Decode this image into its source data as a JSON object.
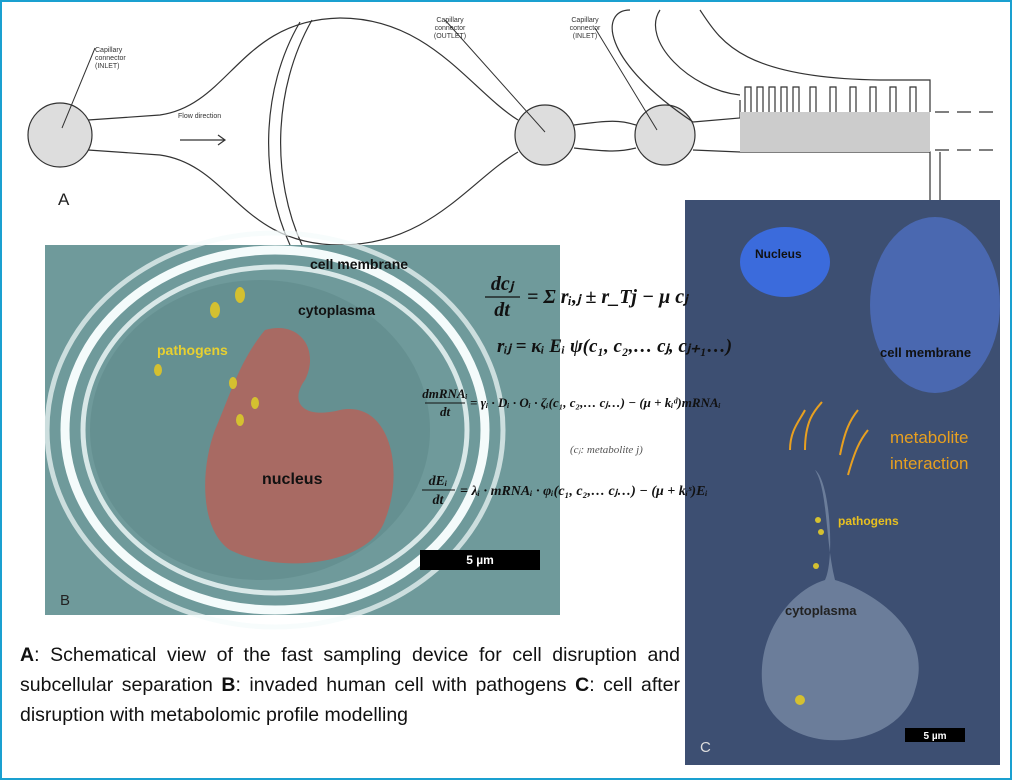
{
  "panel_a": {
    "label": "A",
    "inlet_left": [
      "Capillary",
      "connector",
      "(INLET)"
    ],
    "flow": "Flow direction",
    "outlet": [
      "Capillary",
      "connector",
      "(OUTLET)"
    ],
    "inlet_right": [
      "Capillary",
      "connector",
      "(INLET)"
    ]
  },
  "panel_b": {
    "label": "B",
    "membrane": "cell membrane",
    "cytoplasma": "cytoplasma",
    "pathogens": "pathogens",
    "nucleus": "nucleus",
    "scale": "5 µm"
  },
  "panel_c": {
    "label": "C",
    "nucleus": "Nucleus",
    "membrane": "cell membrane",
    "interaction": [
      "metabolite",
      "interaction"
    ],
    "pathogens": "pathogens",
    "cytoplasma": "cytoplasma",
    "scale": "5 µm"
  },
  "equations": [
    {
      "num": "dcⱼ",
      "den": "dt",
      "rhs": "= Σ rᵢ,ⱼ ± r_Tj − μ  cⱼ"
    },
    {
      "rhs": "rᵢⱼ = κᵢ Eᵢ ψ(c₁, c₂,… cⱼ, cⱼ₊₁…)"
    },
    {
      "num": "dmRNAᵢ",
      "den": "dt",
      "rhs": "= γᵢ · Dᵢ · Oᵢ · ζᵢ(c₁, c₂,… cⱼ…) − (μ + kᵢᵈ)mRNAᵢ"
    },
    {
      "note": "(cⱼ: metabolite j)"
    },
    {
      "num": "dEᵢ",
      "den": "dt",
      "rhs": "= λᵢ · mRNAᵢ · φᵢ(c₁, c₂,… cⱼ…) − (μ + kᵢˢ)Eᵢ"
    }
  ],
  "caption": [
    "A",
    ": Schematical view of  the fast sampling device for cell disruption and subcellular separation ",
    "B",
    ": invaded human cell with pathogens ",
    "C",
    ": cell after disruption with metabolomic profile modelling"
  ]
}
